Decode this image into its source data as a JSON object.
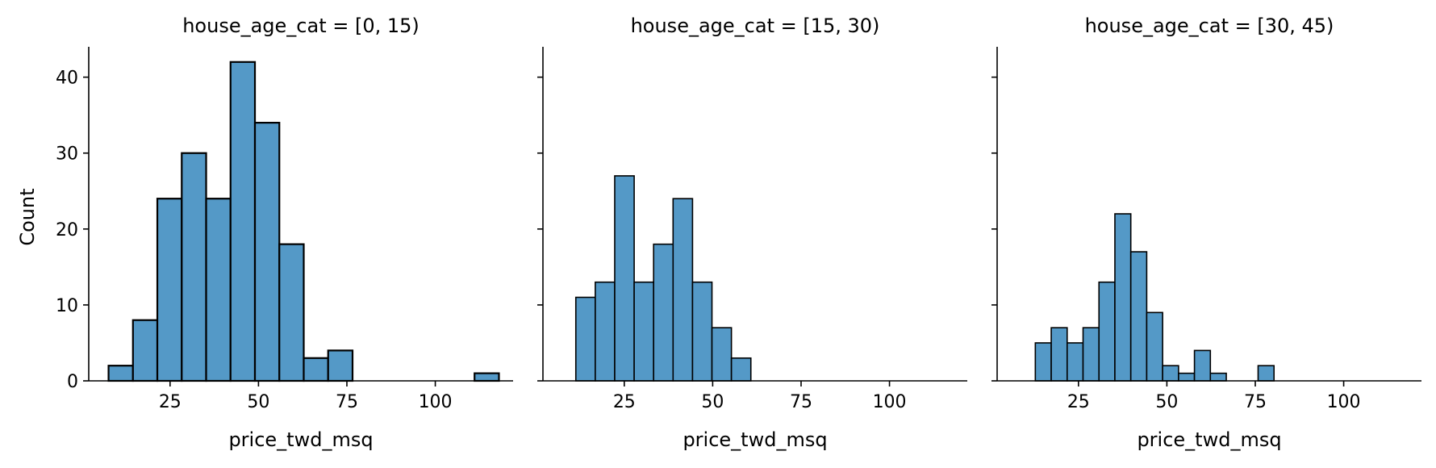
{
  "figure": {
    "ylabel": "Count",
    "xlabel": "price_twd_msq"
  },
  "colors": {
    "bar_fill": "#5499c7",
    "bar_edge": "#000000",
    "axis": "#000000"
  },
  "chart_data": [
    {
      "type": "bar",
      "title": "house_age_cat = [0, 15)",
      "xlabel": "price_twd_msq",
      "ylabel": "Count",
      "xlim": [
        2,
        122
      ],
      "ylim": [
        0,
        44
      ],
      "xticks": [
        25,
        50,
        75,
        100
      ],
      "yticks": [
        0,
        10,
        20,
        30,
        40
      ],
      "bins": [
        {
          "x0": 7.6,
          "x1": 14.5,
          "count": 2
        },
        {
          "x0": 14.5,
          "x1": 21.4,
          "count": 8
        },
        {
          "x0": 21.4,
          "x1": 28.3,
          "count": 24
        },
        {
          "x0": 28.3,
          "x1": 35.2,
          "count": 30
        },
        {
          "x0": 35.2,
          "x1": 42.1,
          "count": 24
        },
        {
          "x0": 42.1,
          "x1": 49.0,
          "count": 42
        },
        {
          "x0": 49.0,
          "x1": 55.9,
          "count": 34
        },
        {
          "x0": 55.9,
          "x1": 62.8,
          "count": 18
        },
        {
          "x0": 62.8,
          "x1": 69.7,
          "count": 3
        },
        {
          "x0": 69.7,
          "x1": 76.6,
          "count": 4
        },
        {
          "x0": 76.6,
          "x1": 83.5,
          "count": 0
        },
        {
          "x0": 83.5,
          "x1": 90.4,
          "count": 0
        },
        {
          "x0": 90.4,
          "x1": 97.3,
          "count": 0
        },
        {
          "x0": 97.3,
          "x1": 104.2,
          "count": 0
        },
        {
          "x0": 104.2,
          "x1": 111.1,
          "count": 0
        },
        {
          "x0": 111.1,
          "x1": 118.0,
          "count": 1
        }
      ]
    },
    {
      "type": "bar",
      "title": "house_age_cat = [15, 30)",
      "xlabel": "price_twd_msq",
      "ylabel": "",
      "xlim": [
        2,
        122
      ],
      "ylim": [
        0,
        44
      ],
      "xticks": [
        25,
        50,
        75,
        100
      ],
      "yticks": [
        0,
        10,
        20,
        30,
        40
      ],
      "bins": [
        {
          "x0": 11.3,
          "x1": 16.8,
          "count": 11
        },
        {
          "x0": 16.8,
          "x1": 22.3,
          "count": 13
        },
        {
          "x0": 22.3,
          "x1": 27.8,
          "count": 27
        },
        {
          "x0": 27.8,
          "x1": 33.3,
          "count": 13
        },
        {
          "x0": 33.3,
          "x1": 38.8,
          "count": 18
        },
        {
          "x0": 38.8,
          "x1": 44.3,
          "count": 24
        },
        {
          "x0": 44.3,
          "x1": 49.8,
          "count": 13
        },
        {
          "x0": 49.8,
          "x1": 55.3,
          "count": 7
        },
        {
          "x0": 55.3,
          "x1": 60.8,
          "count": 3
        }
      ]
    },
    {
      "type": "bar",
      "title": "house_age_cat = [30, 45)",
      "xlabel": "price_twd_msq",
      "ylabel": "",
      "xlim": [
        2,
        122
      ],
      "ylim": [
        0,
        44
      ],
      "xticks": [
        25,
        50,
        75,
        100
      ],
      "yticks": [
        0,
        10,
        20,
        30,
        40
      ],
      "bins": [
        {
          "x0": 12.8,
          "x1": 17.3,
          "count": 5
        },
        {
          "x0": 17.3,
          "x1": 21.8,
          "count": 7
        },
        {
          "x0": 21.8,
          "x1": 26.3,
          "count": 5
        },
        {
          "x0": 26.3,
          "x1": 30.8,
          "count": 7
        },
        {
          "x0": 30.8,
          "x1": 35.3,
          "count": 13
        },
        {
          "x0": 35.3,
          "x1": 39.8,
          "count": 22
        },
        {
          "x0": 39.8,
          "x1": 44.3,
          "count": 17
        },
        {
          "x0": 44.3,
          "x1": 48.8,
          "count": 9
        },
        {
          "x0": 48.8,
          "x1": 53.3,
          "count": 2
        },
        {
          "x0": 53.3,
          "x1": 57.8,
          "count": 1
        },
        {
          "x0": 57.8,
          "x1": 62.3,
          "count": 4
        },
        {
          "x0": 62.3,
          "x1": 66.8,
          "count": 1
        },
        {
          "x0": 66.8,
          "x1": 71.3,
          "count": 0
        },
        {
          "x0": 71.3,
          "x1": 75.8,
          "count": 0
        },
        {
          "x0": 75.8,
          "x1": 80.3,
          "count": 2
        }
      ]
    }
  ]
}
